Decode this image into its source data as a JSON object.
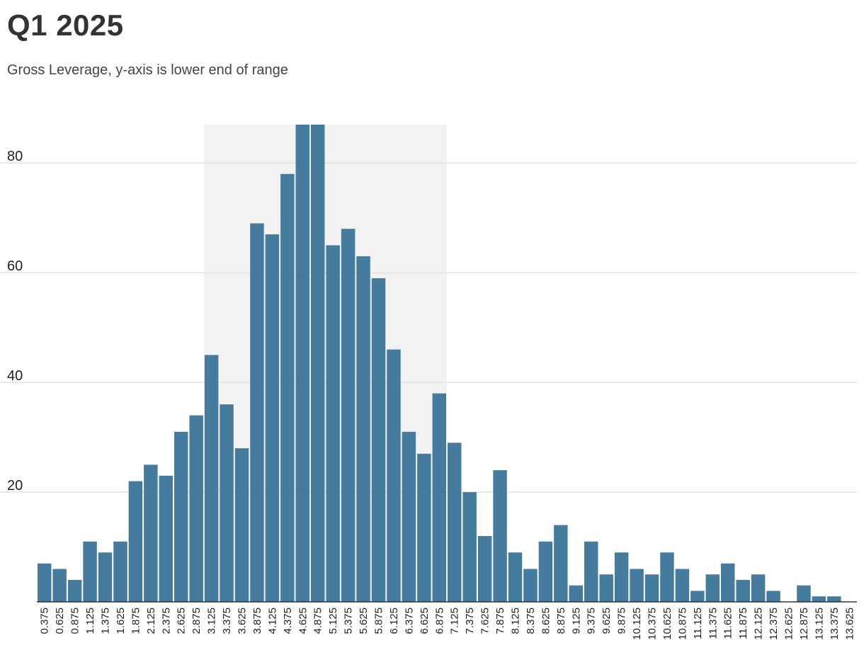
{
  "header": {
    "title": "Q1 2025",
    "subtitle": "Gross Leverage, y-axis is lower end of range"
  },
  "colors": {
    "bar": "#457b9d",
    "highlight_band": "#f2f2f2",
    "gridline": "#e1e1e1",
    "axis": "#333333"
  },
  "chart_data": {
    "type": "bar",
    "categories": [
      "0.375",
      "0.625",
      "0.875",
      "1.125",
      "1.375",
      "1.625",
      "1.875",
      "2.125",
      "2.375",
      "2.625",
      "2.875",
      "3.125",
      "3.375",
      "3.625",
      "3.875",
      "4.125",
      "4.375",
      "4.625",
      "4.875",
      "5.125",
      "5.375",
      "5.625",
      "5.875",
      "6.125",
      "6.375",
      "6.625",
      "6.875",
      "7.125",
      "7.375",
      "7.625",
      "7.875",
      "8.125",
      "8.375",
      "8.625",
      "8.875",
      "9.125",
      "9.375",
      "9.625",
      "9.875",
      "10.125",
      "10.375",
      "10.625",
      "10.875",
      "11.125",
      "11.375",
      "11.625",
      "11.875",
      "12.125",
      "12.375",
      "12.625",
      "12.875",
      "13.125",
      "13.375",
      "13.625"
    ],
    "values": [
      7,
      6,
      4,
      11,
      9,
      11,
      22,
      25,
      23,
      31,
      34,
      45,
      36,
      28,
      69,
      67,
      78,
      87,
      87,
      65,
      68,
      63,
      59,
      46,
      31,
      27,
      38,
      29,
      20,
      12,
      24,
      9,
      6,
      11,
      14,
      3,
      11,
      5,
      9,
      6,
      5,
      9,
      6,
      2,
      5,
      7,
      4,
      5,
      2,
      0,
      3,
      1,
      1,
      0
    ],
    "ylim": [
      0,
      87
    ],
    "yticks": [
      20,
      40,
      60,
      80
    ],
    "grid": true,
    "highlight_range": {
      "from": "3.125",
      "to": "6.875"
    }
  }
}
